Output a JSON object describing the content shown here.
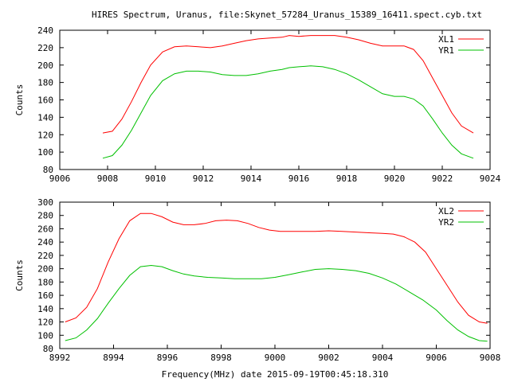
{
  "title": "HIRES Spectrum, Uranus, file:Skynet_57284_Uranus_15389_16411.spect.cyb.txt",
  "chart_data": [
    {
      "type": "line",
      "ylabel": "Counts",
      "xlabel": "",
      "xlim": [
        9006,
        9024
      ],
      "ylim": [
        80,
        240
      ],
      "x_ticks": [
        9006,
        9008,
        9010,
        9012,
        9014,
        9016,
        9018,
        9020,
        9022,
        9024
      ],
      "y_ticks": [
        80,
        100,
        120,
        140,
        160,
        180,
        200,
        220,
        240
      ],
      "legend": "top-right",
      "series": [
        {
          "name": "XL1",
          "color": "#ff0000",
          "points": [
            [
              9007.8,
              122
            ],
            [
              9008.2,
              124
            ],
            [
              9008.6,
              138
            ],
            [
              9009.0,
              158
            ],
            [
              9009.4,
              180
            ],
            [
              9009.8,
              200
            ],
            [
              9010.3,
              215
            ],
            [
              9010.8,
              221
            ],
            [
              9011.3,
              222
            ],
            [
              9011.8,
              221
            ],
            [
              9012.3,
              220
            ],
            [
              9012.8,
              222
            ],
            [
              9013.3,
              225
            ],
            [
              9013.8,
              228
            ],
            [
              9014.3,
              230
            ],
            [
              9014.8,
              231
            ],
            [
              9015.3,
              232
            ],
            [
              9015.6,
              234
            ],
            [
              9016.0,
              233
            ],
            [
              9016.5,
              234
            ],
            [
              9017.0,
              234
            ],
            [
              9017.5,
              234
            ],
            [
              9018.0,
              232
            ],
            [
              9018.5,
              229
            ],
            [
              9019.0,
              225
            ],
            [
              9019.5,
              222
            ],
            [
              9020.0,
              222
            ],
            [
              9020.4,
              222
            ],
            [
              9020.8,
              218
            ],
            [
              9021.2,
              205
            ],
            [
              9021.6,
              185
            ],
            [
              9022.0,
              165
            ],
            [
              9022.4,
              145
            ],
            [
              9022.8,
              130
            ],
            [
              9023.3,
              122
            ]
          ]
        },
        {
          "name": "YR1",
          "color": "#00c000",
          "points": [
            [
              9007.8,
              93
            ],
            [
              9008.2,
              96
            ],
            [
              9008.6,
              108
            ],
            [
              9009.0,
              125
            ],
            [
              9009.4,
              145
            ],
            [
              9009.8,
              165
            ],
            [
              9010.3,
              182
            ],
            [
              9010.8,
              190
            ],
            [
              9011.3,
              193
            ],
            [
              9011.8,
              193
            ],
            [
              9012.3,
              192
            ],
            [
              9012.8,
              189
            ],
            [
              9013.3,
              188
            ],
            [
              9013.8,
              188
            ],
            [
              9014.3,
              190
            ],
            [
              9014.8,
              193
            ],
            [
              9015.3,
              195
            ],
            [
              9015.6,
              197
            ],
            [
              9016.0,
              198
            ],
            [
              9016.5,
              199
            ],
            [
              9017.0,
              198
            ],
            [
              9017.5,
              195
            ],
            [
              9018.0,
              190
            ],
            [
              9018.5,
              183
            ],
            [
              9019.0,
              175
            ],
            [
              9019.5,
              167
            ],
            [
              9020.0,
              164
            ],
            [
              9020.4,
              164
            ],
            [
              9020.8,
              161
            ],
            [
              9021.2,
              153
            ],
            [
              9021.6,
              138
            ],
            [
              9022.0,
              122
            ],
            [
              9022.4,
              108
            ],
            [
              9022.8,
              98
            ],
            [
              9023.3,
              93
            ]
          ]
        }
      ]
    },
    {
      "type": "line",
      "ylabel": "Counts",
      "xlabel": "Frequency(MHz) date 2015-09-19T00:45:18.310",
      "xlim": [
        8992,
        9008
      ],
      "ylim": [
        80,
        300
      ],
      "x_ticks": [
        8992,
        8994,
        8996,
        8998,
        9000,
        9002,
        9004,
        9006,
        9008
      ],
      "y_ticks": [
        80,
        100,
        120,
        140,
        160,
        180,
        200,
        220,
        240,
        260,
        280,
        300
      ],
      "legend": "top-right",
      "series": [
        {
          "name": "XL2",
          "color": "#ff0000",
          "points": [
            [
              8992.2,
              120
            ],
            [
              8992.6,
              126
            ],
            [
              8993.0,
              142
            ],
            [
              8993.4,
              170
            ],
            [
              8993.8,
              210
            ],
            [
              8994.2,
              245
            ],
            [
              8994.6,
              272
            ],
            [
              8995.0,
              283
            ],
            [
              8995.4,
              283
            ],
            [
              8995.8,
              278
            ],
            [
              8996.2,
              270
            ],
            [
              8996.6,
              266
            ],
            [
              8997.0,
              266
            ],
            [
              8997.4,
              268
            ],
            [
              8997.8,
              272
            ],
            [
              8998.2,
              273
            ],
            [
              8998.6,
              272
            ],
            [
              8999.0,
              268
            ],
            [
              8999.4,
              262
            ],
            [
              8999.8,
              258
            ],
            [
              9000.2,
              256
            ],
            [
              9000.6,
              256
            ],
            [
              9001.0,
              256
            ],
            [
              9001.5,
              256
            ],
            [
              9002.0,
              257
            ],
            [
              9002.5,
              256
            ],
            [
              9003.0,
              255
            ],
            [
              9003.5,
              254
            ],
            [
              9004.0,
              253
            ],
            [
              9004.4,
              252
            ],
            [
              9004.8,
              248
            ],
            [
              9005.2,
              240
            ],
            [
              9005.6,
              225
            ],
            [
              9006.0,
              200
            ],
            [
              9006.4,
              175
            ],
            [
              9006.8,
              150
            ],
            [
              9007.2,
              130
            ],
            [
              9007.6,
              120
            ],
            [
              9007.9,
              118
            ]
          ]
        },
        {
          "name": "YR2",
          "color": "#00c000",
          "points": [
            [
              8992.2,
              92
            ],
            [
              8992.6,
              96
            ],
            [
              8993.0,
              108
            ],
            [
              8993.4,
              125
            ],
            [
              8993.8,
              148
            ],
            [
              8994.2,
              170
            ],
            [
              8994.6,
              190
            ],
            [
              8995.0,
              203
            ],
            [
              8995.4,
              205
            ],
            [
              8995.8,
              203
            ],
            [
              8996.2,
              197
            ],
            [
              8996.6,
              192
            ],
            [
              8997.0,
              189
            ],
            [
              8997.5,
              187
            ],
            [
              8998.0,
              186
            ],
            [
              8998.5,
              185
            ],
            [
              8999.0,
              185
            ],
            [
              8999.5,
              185
            ],
            [
              9000.0,
              187
            ],
            [
              9000.5,
              191
            ],
            [
              9001.0,
              195
            ],
            [
              9001.5,
              199
            ],
            [
              9002.0,
              200
            ],
            [
              9002.5,
              199
            ],
            [
              9003.0,
              197
            ],
            [
              9003.5,
              193
            ],
            [
              9004.0,
              186
            ],
            [
              9004.5,
              177
            ],
            [
              9005.0,
              165
            ],
            [
              9005.5,
              153
            ],
            [
              9006.0,
              138
            ],
            [
              9006.4,
              122
            ],
            [
              9006.8,
              108
            ],
            [
              9007.2,
              98
            ],
            [
              9007.6,
              92
            ],
            [
              9007.9,
              91
            ]
          ]
        }
      ]
    }
  ]
}
